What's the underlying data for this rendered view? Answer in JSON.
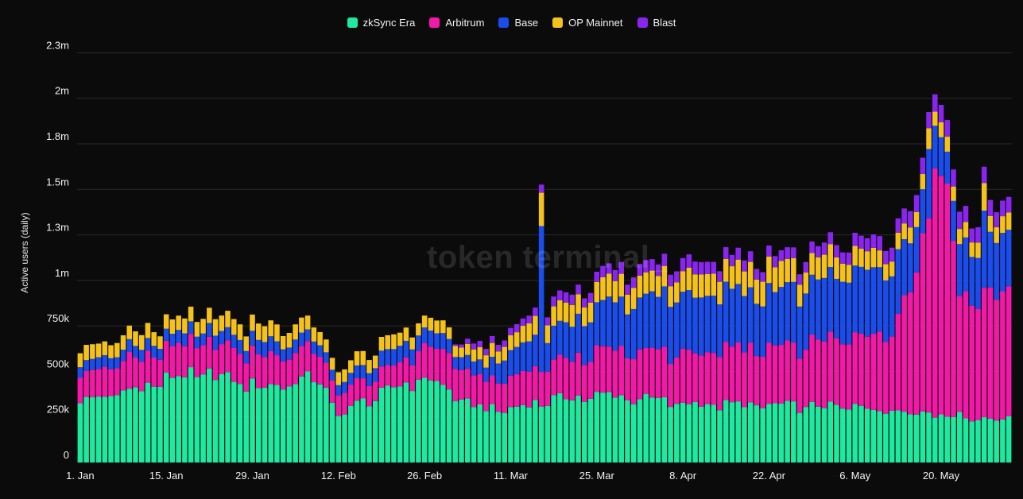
{
  "watermark": "token terminal_",
  "chart_data": {
    "type": "bar",
    "stacked": true,
    "ylabel": "Active users (daily)",
    "ylim": [
      0,
      2300000
    ],
    "y_ticks": [
      {
        "value": 0,
        "label": "0"
      },
      {
        "value": 250000,
        "label": "250k"
      },
      {
        "value": 500000,
        "label": "500k"
      },
      {
        "value": 750000,
        "label": "750k"
      },
      {
        "value": 1000000,
        "label": "1m"
      },
      {
        "value": 1250000,
        "label": "1.3m"
      },
      {
        "value": 1500000,
        "label": "1.5m"
      },
      {
        "value": 1750000,
        "label": "1.8m"
      },
      {
        "value": 2000000,
        "label": "2m"
      },
      {
        "value": 2250000,
        "label": "2.3m"
      }
    ],
    "x_ticks": [
      {
        "index": 0,
        "label": "1. Jan"
      },
      {
        "index": 14,
        "label": "15. Jan"
      },
      {
        "index": 28,
        "label": "29. Jan"
      },
      {
        "index": 42,
        "label": "12. Feb"
      },
      {
        "index": 56,
        "label": "26. Feb"
      },
      {
        "index": 70,
        "label": "11. Mar"
      },
      {
        "index": 84,
        "label": "25. Mar"
      },
      {
        "index": 98,
        "label": "8. Apr"
      },
      {
        "index": 112,
        "label": "22. Apr"
      },
      {
        "index": 126,
        "label": "6. May"
      },
      {
        "index": 140,
        "label": "20. May"
      }
    ],
    "grid": true,
    "legend_position": "top-center",
    "series": [
      {
        "name": "zkSync Era",
        "color": "#1de9a0",
        "key": "zk",
        "anchors": [
          [
            0,
            340000
          ],
          [
            10,
            420000
          ],
          [
            14,
            470000
          ],
          [
            20,
            500000
          ],
          [
            30,
            420000
          ],
          [
            37,
            470000
          ],
          [
            40,
            430000
          ],
          [
            42,
            250000
          ],
          [
            44,
            310000
          ],
          [
            50,
            400000
          ],
          [
            56,
            480000
          ],
          [
            60,
            400000
          ],
          [
            63,
            330000
          ],
          [
            66,
            300000
          ],
          [
            70,
            300000
          ],
          [
            76,
            350000
          ],
          [
            86,
            380000
          ],
          [
            98,
            330000
          ],
          [
            112,
            320000
          ],
          [
            126,
            310000
          ],
          [
            140,
            270000
          ],
          [
            150,
            240000
          ]
        ]
      },
      {
        "name": "Arbitrum",
        "color": "#f418a8",
        "key": "arb",
        "anchors": [
          [
            0,
            150000
          ],
          [
            14,
            170000
          ],
          [
            30,
            180000
          ],
          [
            40,
            150000
          ],
          [
            42,
            120000
          ],
          [
            50,
            110000
          ],
          [
            56,
            180000
          ],
          [
            60,
            190000
          ],
          [
            63,
            170000
          ],
          [
            66,
            160000
          ],
          [
            70,
            170000
          ],
          [
            76,
            200000
          ],
          [
            86,
            250000
          ],
          [
            98,
            280000
          ],
          [
            112,
            320000
          ],
          [
            126,
            390000
          ],
          [
            132,
            470000
          ],
          [
            136,
            780000
          ],
          [
            139,
            1430000
          ],
          [
            141,
            1270000
          ],
          [
            143,
            680000
          ],
          [
            150,
            700000
          ]
        ]
      },
      {
        "name": "Base",
        "color": "#1a4dec",
        "key": "base",
        "anchors": [
          [
            0,
            60000
          ],
          [
            14,
            70000
          ],
          [
            30,
            80000
          ],
          [
            42,
            60000
          ],
          [
            50,
            90000
          ],
          [
            56,
            90000
          ],
          [
            63,
            70000
          ],
          [
            66,
            80000
          ],
          [
            70,
            150000
          ],
          [
            76,
            170000
          ],
          [
            86,
            260000
          ],
          [
            98,
            330000
          ],
          [
            112,
            310000
          ],
          [
            126,
            360000
          ],
          [
            133,
            340000
          ],
          [
            136,
            240000
          ],
          [
            139,
            240000
          ],
          [
            141,
            170000
          ],
          [
            143,
            280000
          ],
          [
            150,
            300000
          ]
        ]
      },
      {
        "name": "OP Mainnet",
        "color": "#f5c21c",
        "key": "op",
        "anchors": [
          [
            0,
            80000
          ],
          [
            14,
            80000
          ],
          [
            30,
            90000
          ],
          [
            42,
            70000
          ],
          [
            50,
            80000
          ],
          [
            56,
            70000
          ],
          [
            63,
            60000
          ],
          [
            66,
            70000
          ],
          [
            70,
            80000
          ],
          [
            76,
            110000
          ],
          [
            86,
            120000
          ],
          [
            98,
            120000
          ],
          [
            112,
            140000
          ],
          [
            126,
            110000
          ],
          [
            136,
            80000
          ],
          [
            150,
            90000
          ]
        ]
      },
      {
        "name": "Blast",
        "color": "#8a25f0",
        "key": "blast",
        "anchors": [
          [
            0,
            0
          ],
          [
            60,
            0
          ],
          [
            63,
            30000
          ],
          [
            70,
            40000
          ],
          [
            76,
            50000
          ],
          [
            86,
            60000
          ],
          [
            98,
            70000
          ],
          [
            112,
            60000
          ],
          [
            126,
            70000
          ],
          [
            136,
            90000
          ],
          [
            139,
            100000
          ],
          [
            150,
            80000
          ]
        ]
      }
    ],
    "spikes": [
      {
        "index": 8,
        "arb": 40000
      },
      {
        "index": 75,
        "base": 650000,
        "op": 90000
      },
      {
        "index": 138,
        "zk": 20000,
        "base": 150000,
        "op": 40000
      },
      {
        "index": 147,
        "base": 120000,
        "op": 60000
      }
    ],
    "num_days": 152
  }
}
